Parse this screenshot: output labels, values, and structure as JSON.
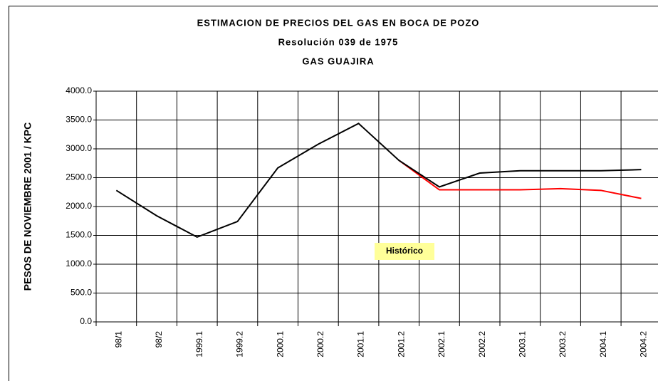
{
  "chart_data": {
    "type": "line",
    "title": "ESTIMACION DE PRECIOS DEL GAS EN BOCA DE POZO",
    "subtitle": "Resolución 039 de 1975",
    "subtitle2": "GAS GUAJIRA",
    "y_label": "PESOS DE NOVIEMBRE 2001 / KPC",
    "annotation": "Histórico",
    "categories": [
      "98/1",
      "98/2",
      "1999.1",
      "1999.2",
      "2000.1",
      "2000.2",
      "2001.1",
      "2001.2",
      "2002.1",
      "2002.2",
      "2003.1",
      "2003.2",
      "2004.1",
      "2004.2"
    ],
    "series": [
      {
        "color": "#ff0000",
        "values": [
          null,
          null,
          null,
          null,
          null,
          null,
          null,
          2800,
          2290,
          2290,
          2290,
          2310,
          2280,
          2140
        ]
      },
      {
        "color": "#000000",
        "values": [
          2280,
          1840,
          1470,
          1740,
          2670,
          3080,
          3440,
          2800,
          2340,
          2580,
          2620,
          2620,
          2620,
          2640
        ]
      }
    ],
    "ylim": [
      0,
      4000
    ],
    "yticks": [
      {
        "value": 0,
        "label": "0.0"
      },
      {
        "value": 500,
        "label": "500.0"
      },
      {
        "value": 1000,
        "label": "1000.0"
      },
      {
        "value": 1500,
        "label": "1500.0"
      },
      {
        "value": 2000,
        "label": "2000.0"
      },
      {
        "value": 2500,
        "label": "2500.0"
      },
      {
        "value": 3000,
        "label": "3000.0"
      },
      {
        "value": 3500,
        "label": "3500.0"
      },
      {
        "value": 4000,
        "label": "4000.0"
      }
    ],
    "grid": true
  }
}
